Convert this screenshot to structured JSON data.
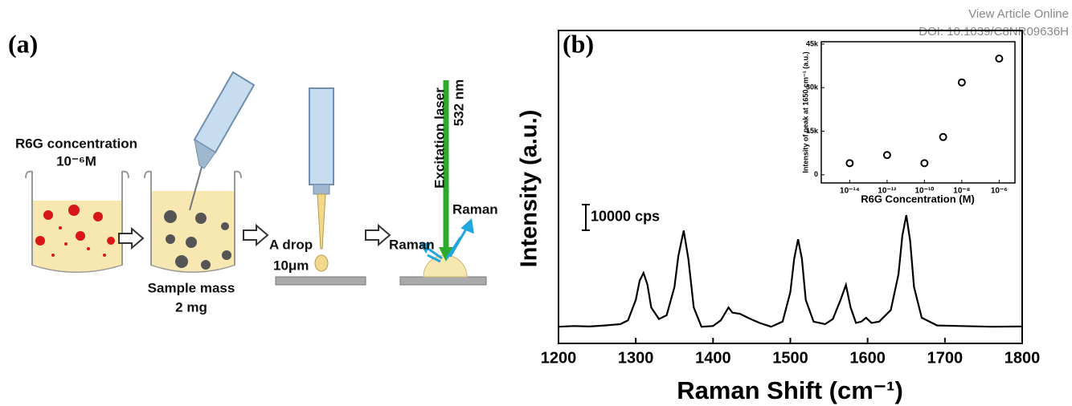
{
  "header": {
    "link": "View Article Online",
    "doi": "DOI: 10.1039/C8NR09636H"
  },
  "figure_a": {
    "panel_label": "(a)",
    "concentration_title": "R6G concentration",
    "concentration_value": "10⁻⁶M",
    "mass_title": "Sample mass",
    "mass_value": "2 mg",
    "drop_title": "A drop",
    "drop_size": "10μm",
    "laser_title": "Excitation laser",
    "laser_wavelength": "532 nm",
    "raman_right": "Raman",
    "raman_left": "Raman"
  },
  "chart_data": [
    {
      "type": "line",
      "panel_label": "(b)",
      "xlabel": "Raman Shift (cm⁻¹)",
      "ylabel": "Intensity (a.u.)",
      "color": "#000000",
      "x": [
        1200,
        1220,
        1240,
        1260,
        1280,
        1290,
        1300,
        1305,
        1310,
        1315,
        1320,
        1330,
        1340,
        1350,
        1355,
        1362,
        1368,
        1375,
        1385,
        1400,
        1410,
        1415,
        1420,
        1425,
        1435,
        1445,
        1460,
        1475,
        1490,
        1500,
        1505,
        1510,
        1515,
        1520,
        1530,
        1545,
        1555,
        1565,
        1572,
        1578,
        1585,
        1592,
        1598,
        1605,
        1615,
        1630,
        1640,
        1645,
        1650,
        1655,
        1660,
        1670,
        1690,
        1720,
        1760,
        1800
      ],
      "values": [
        6500,
        6800,
        6600,
        7000,
        7500,
        9000,
        17000,
        24500,
        27500,
        23000,
        14000,
        9500,
        11000,
        22000,
        34000,
        44000,
        33000,
        14000,
        6500,
        6800,
        9000,
        11500,
        14000,
        12000,
        11500,
        10000,
        8000,
        6500,
        8500,
        20000,
        33000,
        40600,
        33000,
        17000,
        8500,
        7500,
        9500,
        17000,
        22800,
        14000,
        8000,
        8500,
        10000,
        8000,
        8500,
        13000,
        27000,
        42000,
        50000,
        40000,
        22000,
        10000,
        7000,
        6800,
        6500,
        6600
      ],
      "xlim": [
        1200,
        1800
      ],
      "xticks": [
        1200,
        1300,
        1400,
        1500,
        1600,
        1700,
        1800
      ],
      "ylim": [
        0,
        122000
      ],
      "scale_bar": {
        "value": 10000,
        "label": "10000 cps"
      }
    },
    {
      "type": "scatter",
      "xlabel": "R6G Concentration (M)",
      "ylabel": "Intensity of peak at 1650 cm⁻¹ (a.u.)",
      "color": "#000000",
      "xscale": "log",
      "x": [
        1e-14,
        1e-12,
        1e-10,
        1e-09,
        1e-08,
        1e-06
      ],
      "values": [
        4000,
        6800,
        4000,
        13000,
        31800,
        40000
      ],
      "xlim": [
        3e-16,
        7e-06
      ],
      "ylim": [
        -2800,
        45800
      ],
      "xticks": [
        {
          "value": 1e-14,
          "label": "10⁻¹⁴"
        },
        {
          "value": 1e-12,
          "label": "10⁻¹²"
        },
        {
          "value": 1e-10,
          "label": "10⁻¹⁰"
        },
        {
          "value": 1e-08,
          "label": "10⁻⁸"
        },
        {
          "value": 1e-06,
          "label": "10⁻⁶"
        }
      ],
      "yticks": [
        0,
        {
          "value": 15000,
          "label": "15k"
        },
        {
          "value": 30000,
          "label": "30k"
        },
        {
          "value": 45000,
          "label": "45k"
        }
      ]
    }
  ]
}
